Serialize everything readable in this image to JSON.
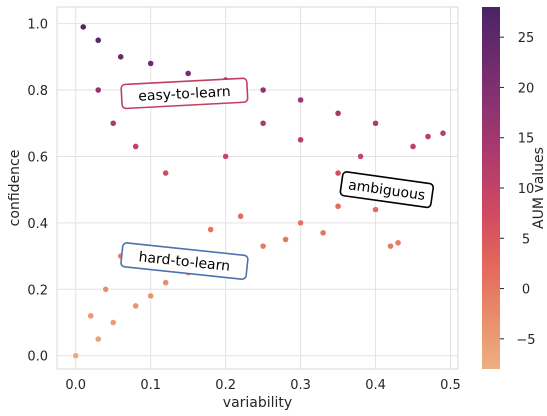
{
  "chart_data": {
    "type": "scatter",
    "xlabel": "variability",
    "ylabel": "confidence",
    "xlim": [
      -0.025,
      0.51
    ],
    "ylim": [
      -0.04,
      1.05
    ],
    "x_ticks": [
      0.0,
      0.1,
      0.2,
      0.3,
      0.4,
      0.5
    ],
    "x_tick_labels": [
      "0.0",
      "0.1",
      "0.2",
      "0.3",
      "0.4",
      "0.5"
    ],
    "y_ticks": [
      0.0,
      0.2,
      0.4,
      0.6,
      0.8,
      1.0
    ],
    "y_tick_labels": [
      "0.0",
      "0.2",
      "0.4",
      "0.6",
      "0.8",
      "1.0"
    ],
    "grid": true,
    "colorbar": {
      "label": "AUM values",
      "range": [
        -8,
        28
      ],
      "ticks": [
        -5,
        0,
        5,
        10,
        15,
        20,
        25
      ],
      "tick_labels": [
        "−5",
        "0",
        "5",
        "10",
        "15",
        "20",
        "25"
      ],
      "colormap": "flare",
      "colors": [
        "#edb081",
        "#e98d6b",
        "#e3685c",
        "#d14a61",
        "#b13c6c",
        "#8f3371",
        "#6c2b6d",
        "#4a2466"
      ]
    },
    "annotations": [
      {
        "text": "easy-to-learn",
        "x": 0.145,
        "y": 0.79,
        "rotation": -3,
        "border_color": "#c23f5e"
      },
      {
        "text": "ambiguous",
        "x": 0.415,
        "y": 0.5,
        "rotation": 8,
        "border_color": "#000000"
      },
      {
        "text": "hard-to-learn",
        "x": 0.145,
        "y": 0.285,
        "rotation": 6,
        "border_color": "#4c72b0"
      }
    ],
    "series": [
      {
        "color_encoding": "AUM values",
        "points": [
          [
            0.0,
            0.0
          ],
          [
            0.03,
            0.05
          ],
          [
            0.02,
            0.12
          ],
          [
            0.05,
            0.1
          ],
          [
            0.04,
            0.2
          ],
          [
            0.08,
            0.15
          ],
          [
            0.1,
            0.18
          ],
          [
            0.12,
            0.22
          ],
          [
            0.06,
            0.3
          ],
          [
            0.15,
            0.25
          ],
          [
            0.2,
            0.3
          ],
          [
            0.25,
            0.33
          ],
          [
            0.1,
            0.32
          ],
          [
            0.18,
            0.38
          ],
          [
            0.22,
            0.42
          ],
          [
            0.28,
            0.35
          ],
          [
            0.3,
            0.4
          ],
          [
            0.33,
            0.37
          ],
          [
            0.35,
            0.45
          ],
          [
            0.42,
            0.33
          ],
          [
            0.43,
            0.34
          ],
          [
            0.4,
            0.44
          ],
          [
            0.03,
            0.8
          ],
          [
            0.05,
            0.7
          ],
          [
            0.08,
            0.63
          ],
          [
            0.12,
            0.55
          ],
          [
            0.2,
            0.6
          ],
          [
            0.25,
            0.7
          ],
          [
            0.3,
            0.65
          ],
          [
            0.35,
            0.55
          ],
          [
            0.38,
            0.6
          ],
          [
            0.45,
            0.63
          ],
          [
            0.01,
            0.99
          ],
          [
            0.03,
            0.95
          ],
          [
            0.06,
            0.9
          ],
          [
            0.1,
            0.88
          ],
          [
            0.15,
            0.85
          ],
          [
            0.2,
            0.83
          ],
          [
            0.25,
            0.8
          ],
          [
            0.3,
            0.77
          ],
          [
            0.35,
            0.73
          ],
          [
            0.4,
            0.7
          ],
          [
            0.47,
            0.66
          ],
          [
            0.49,
            0.67
          ]
        ]
      }
    ]
  }
}
